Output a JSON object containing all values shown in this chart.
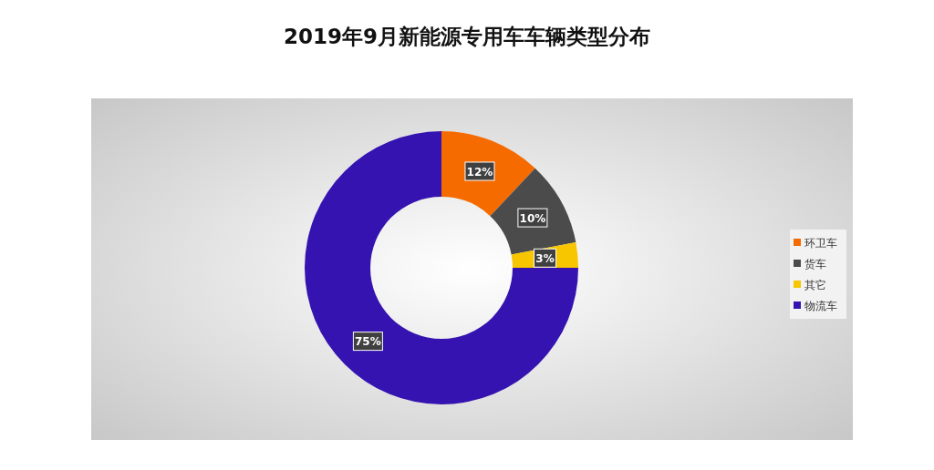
{
  "chart_data": {
    "type": "donut",
    "title": "2019年9月新能源专用车车辆类型分布",
    "categories": [
      "环卫车",
      "货车",
      "其它",
      "物流车"
    ],
    "values": [
      12,
      10,
      3,
      75
    ],
    "colors": [
      "#f56b00",
      "#4b4b4b",
      "#f7c600",
      "#3513b0"
    ],
    "value_labels": [
      "12%",
      "10%",
      "3%",
      "75%"
    ],
    "legend": "right"
  }
}
